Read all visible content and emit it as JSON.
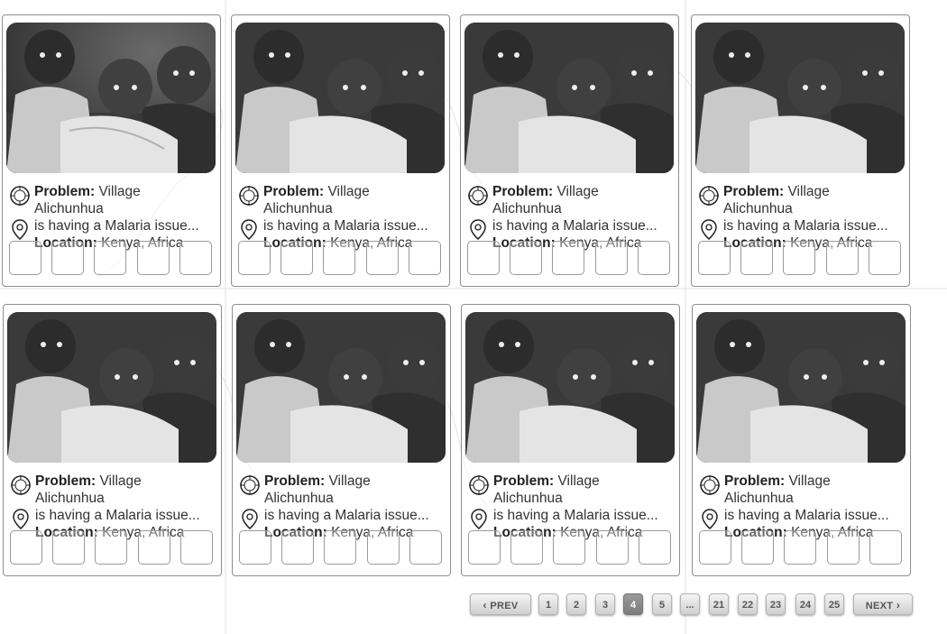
{
  "cards": [
    {
      "problem_label": "Problem:",
      "problem_text": "Village",
      "problem_line2": "Alichunhua",
      "problem_line3": "is having a Malaria issue...",
      "location_label": "Location:",
      "location_text": "Kenya, Africa"
    },
    {
      "problem_label": "Problem:",
      "problem_text": "Village",
      "problem_line2": "Alichunhua",
      "problem_line3": "is having a Malaria issue...",
      "location_label": "Location:",
      "location_text": "Kenya, Africa"
    },
    {
      "problem_label": "Problem:",
      "problem_text": "Village",
      "problem_line2": "Alichunhua",
      "problem_line3": "is having a Malaria issue...",
      "location_label": "Location:",
      "location_text": "Kenya, Africa"
    },
    {
      "problem_label": "Problem:",
      "problem_text": "Village",
      "problem_line2": "Alichunhua",
      "problem_line3": "is having a Malaria issue...",
      "location_label": "Location:",
      "location_text": "Kenya, Africa"
    },
    {
      "problem_label": "Problem:",
      "problem_text": "Village",
      "problem_line2": "Alichunhua",
      "problem_line3": "is having a Malaria issue...",
      "location_label": "Location:",
      "location_text": "Kenya, Africa"
    },
    {
      "problem_label": "Problem:",
      "problem_text": "Village",
      "problem_line2": "Alichunhua",
      "problem_line3": "is having a Malaria issue...",
      "location_label": "Location:",
      "location_text": "Kenya, Africa"
    },
    {
      "problem_label": "Problem:",
      "problem_text": "Village",
      "problem_line2": "Alichunhua",
      "problem_line3": "is having a Malaria issue...",
      "location_label": "Location:",
      "location_text": "Kenya, Africa"
    },
    {
      "problem_label": "Problem:",
      "problem_text": "Village",
      "problem_line2": "Alichunhua",
      "problem_line3": "is having a Malaria issue...",
      "location_label": "Location:",
      "location_text": "Kenya, Africa"
    }
  ],
  "icons": {
    "problem": "crosshair-target-icon",
    "location": "map-pin-icon"
  },
  "pagination": {
    "prev_label": "PREV",
    "next_label": "NEXT",
    "pages": [
      "1",
      "2",
      "3",
      "4",
      "5",
      "...",
      "21",
      "22",
      "23",
      "24",
      "25"
    ],
    "current": "4"
  },
  "colors": {
    "active_page": "#8a8a8a",
    "card_border": "#8e8e8e"
  }
}
